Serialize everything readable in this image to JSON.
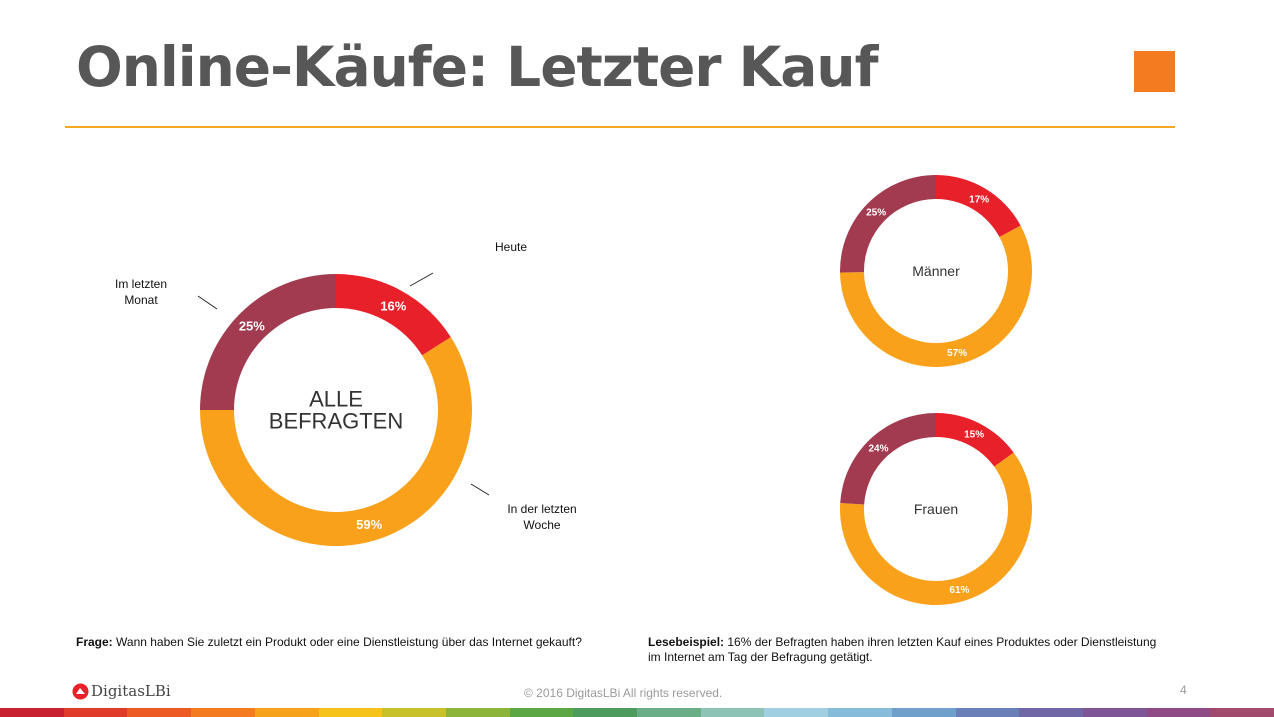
{
  "slide": {
    "title": "Online-Käufe: Letzter Kauf",
    "accent_color": "#F47B20",
    "rule_color": "#F5A623"
  },
  "chart_data": [
    {
      "type": "pie",
      "style": "donut",
      "center_label": [
        "ALLE",
        "BEFRAGTEN"
      ],
      "slices": [
        {
          "label": "Heute",
          "value": 16,
          "display": "16%",
          "color": "#E8202A"
        },
        {
          "label": "In der letzten Woche",
          "value": 59,
          "display": "59%",
          "color": "#F9A11B"
        },
        {
          "label": "Im letzten Monat",
          "value": 25,
          "display": "25%",
          "color": "#A23B50"
        }
      ],
      "callouts": {
        "heute": "Heute",
        "woche": [
          "In der letzten",
          "Woche"
        ],
        "monat": [
          "Im letzten",
          "Monat"
        ]
      }
    },
    {
      "type": "pie",
      "style": "donut",
      "center_label": [
        "Männer"
      ],
      "slices": [
        {
          "label": "Heute",
          "value": 17,
          "display": "17%",
          "color": "#E8202A"
        },
        {
          "label": "In der letzten Woche",
          "value": 57,
          "display": "57%",
          "color": "#F9A11B"
        },
        {
          "label": "Im letzten Monat",
          "value": 25,
          "display": "25%",
          "color": "#A23B50"
        }
      ]
    },
    {
      "type": "pie",
      "style": "donut",
      "center_label": [
        "Frauen"
      ],
      "slices": [
        {
          "label": "Heute",
          "value": 15,
          "display": "15%",
          "color": "#E8202A"
        },
        {
          "label": "In der letzten Woche",
          "value": 61,
          "display": "61%",
          "color": "#F9A11B"
        },
        {
          "label": "Im letzten Monat",
          "value": 24,
          "display": "24%",
          "color": "#A23B50"
        }
      ]
    }
  ],
  "notes": {
    "question_label": "Frage:",
    "question_text": " Wann haben Sie zuletzt ein Produkt oder eine Dienstleistung über das Internet gekauft?",
    "example_label": "Lesebeispiel:",
    "example_text": " 16% der Befragten haben ihren letzten Kauf eines Produktes oder Dienstleistung im Internet am Tag der Befragung getätigt."
  },
  "footer": {
    "logo_text": "DigitasLBi",
    "logo_color": "#E8202A",
    "copyright": "© 2016 DigitasLBi  All rights reserved.",
    "page_number": "4",
    "stripe_colors": [
      "#C8202F",
      "#E03A2B",
      "#EE5A24",
      "#F47B20",
      "#F7A21B",
      "#F6C31B",
      "#C9C12A",
      "#8DB43A",
      "#5BA744",
      "#4E9B5E",
      "#6AAE88",
      "#8DC3B6",
      "#9FCFE0",
      "#86BCD9",
      "#6F9FCB",
      "#6A7FB8",
      "#7067A6",
      "#7E5597",
      "#8E4B86",
      "#A04A6E"
    ]
  }
}
